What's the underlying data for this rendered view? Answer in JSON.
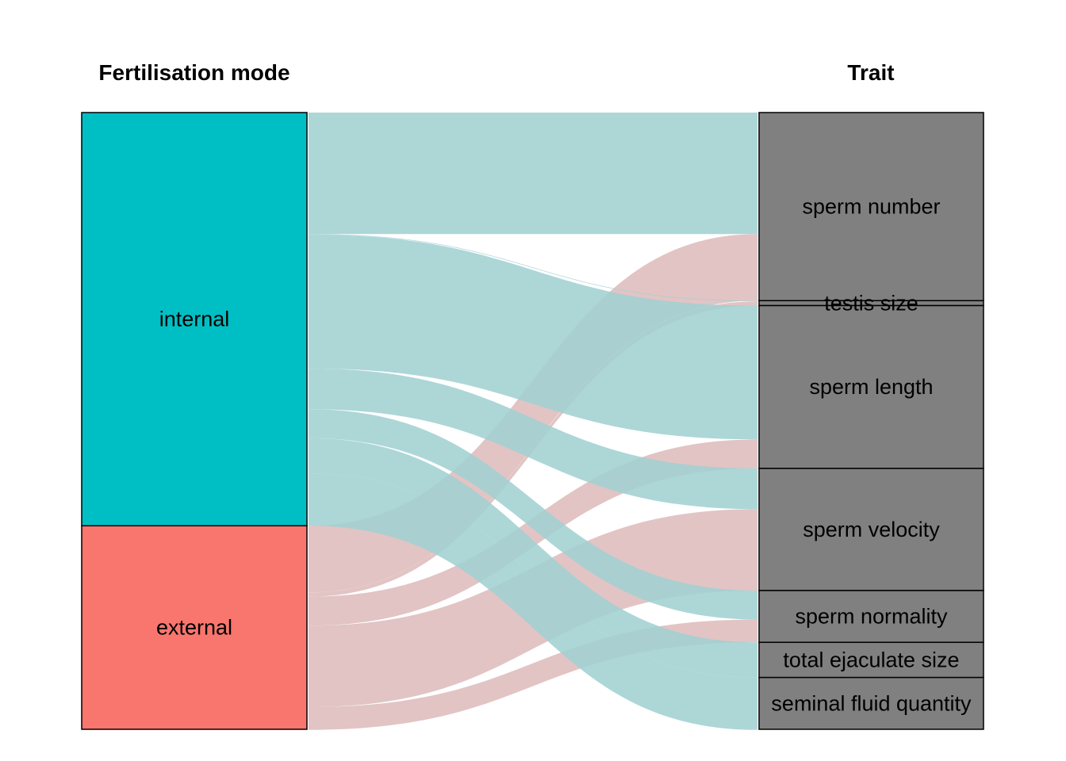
{
  "chart_data": {
    "type": "alluvial",
    "axis_titles": [
      "Fertilisation mode",
      "Trait"
    ],
    "colors": {
      "internal": "#00BFC4",
      "external": "#F8766D",
      "trait": "#808080",
      "internal_flow": "#A2D0D2",
      "external_flow": "#DEBCBC"
    },
    "left_nodes": [
      {
        "name": "internal",
        "value": 67.0
      },
      {
        "name": "external",
        "value": 33.0
      }
    ],
    "right_nodes": [
      {
        "name": "sperm number",
        "value": 30.5
      },
      {
        "name": "testis size",
        "value": 0.8
      },
      {
        "name": "sperm length",
        "value": 26.4
      },
      {
        "name": "sperm velocity",
        "value": 19.8
      },
      {
        "name": "sperm normality",
        "value": 8.4
      },
      {
        "name": "total ejaculate size",
        "value": 5.7
      },
      {
        "name": "seminal fluid quantity",
        "value": 8.4
      }
    ],
    "flows": [
      {
        "from": "internal",
        "to": "sperm number",
        "value": 19.7
      },
      {
        "from": "internal",
        "to": "testis size",
        "value": 0.1
      },
      {
        "from": "internal",
        "to": "sperm length",
        "value": 21.7
      },
      {
        "from": "internal",
        "to": "sperm velocity",
        "value": 6.6
      },
      {
        "from": "internal",
        "to": "sperm normality",
        "value": 4.7
      },
      {
        "from": "internal",
        "to": "total ejaculate size",
        "value": 5.7
      },
      {
        "from": "internal",
        "to": "seminal fluid quantity",
        "value": 8.5
      },
      {
        "from": "external",
        "to": "sperm number",
        "value": 10.8
      },
      {
        "from": "external",
        "to": "testis size",
        "value": 0.7
      },
      {
        "from": "external",
        "to": "sperm length",
        "value": 4.7
      },
      {
        "from": "external",
        "to": "sperm velocity",
        "value": 13.2
      },
      {
        "from": "external",
        "to": "sperm normality",
        "value": 3.7
      },
      {
        "from": "external",
        "to": "total ejaculate size",
        "value": 0.0
      },
      {
        "from": "external",
        "to": "seminal fluid quantity",
        "value": 0.0
      }
    ]
  }
}
